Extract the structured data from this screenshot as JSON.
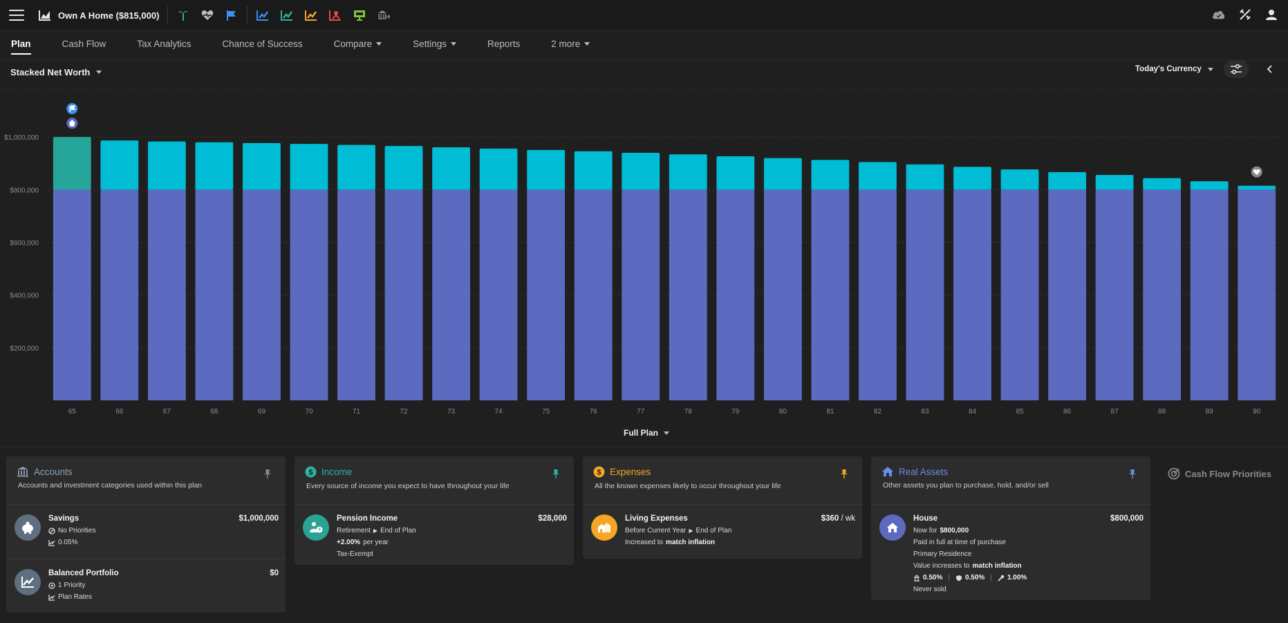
{
  "app": {
    "plan_title": "Own A Home ($815,000)"
  },
  "toolbar": {
    "left_icons": [
      {
        "name": "palm-icon",
        "color": "#2bb3a3"
      },
      {
        "name": "heart-monitor-icon",
        "color": "#bdbdbd"
      },
      {
        "name": "flag-icon",
        "color": "#3d8ff0"
      },
      {
        "name": "chart-scenario-1-icon",
        "color": "#3d8ff0"
      },
      {
        "name": "chart-scenario-2-icon",
        "color": "#2bb3a3"
      },
      {
        "name": "chart-scenario-3-icon",
        "color": "#f0a12b"
      },
      {
        "name": "chart-scenario-4-icon",
        "color": "#e84a4a"
      },
      {
        "name": "presentation-icon",
        "color": "#7cc440"
      },
      {
        "name": "bank-arrow-icon",
        "color": "#8a8a8a"
      }
    ],
    "right_icons": [
      "cloud-icon",
      "tools-icon",
      "user-icon"
    ]
  },
  "tabs": [
    {
      "label": "Plan",
      "active": true,
      "dropdown": false
    },
    {
      "label": "Cash Flow",
      "active": false,
      "dropdown": false
    },
    {
      "label": "Tax Analytics",
      "active": false,
      "dropdown": false
    },
    {
      "label": "Chance of Success",
      "active": false,
      "dropdown": false
    },
    {
      "label": "Compare",
      "active": false,
      "dropdown": true
    },
    {
      "label": "Settings",
      "active": false,
      "dropdown": true
    },
    {
      "label": "Reports",
      "active": false,
      "dropdown": false
    },
    {
      "label": "2 more",
      "active": false,
      "dropdown": true
    }
  ],
  "chart_controls": {
    "view": "Stacked Net Worth",
    "currency": "Today's Currency",
    "range": "Full Plan"
  },
  "chart_data": {
    "type": "bar",
    "stacked": true,
    "categories": [
      "65",
      "66",
      "67",
      "68",
      "69",
      "70",
      "71",
      "72",
      "73",
      "74",
      "75",
      "76",
      "77",
      "78",
      "79",
      "80",
      "81",
      "82",
      "83",
      "84",
      "85",
      "86",
      "87",
      "88",
      "89",
      "90"
    ],
    "series": [
      {
        "name": "House",
        "color": "#5c6bc0",
        "values": [
          800000,
          800000,
          800000,
          800000,
          800000,
          800000,
          800000,
          800000,
          800000,
          800000,
          800000,
          800000,
          800000,
          800000,
          800000,
          800000,
          800000,
          800000,
          800000,
          800000,
          800000,
          800000,
          800000,
          800000,
          800000,
          800000
        ]
      },
      {
        "name": "Savings",
        "color": "#00bcd4",
        "first_bar_color": "#26a69a",
        "values": [
          200000,
          187000,
          183000,
          180000,
          177000,
          174000,
          170000,
          166000,
          161000,
          156000,
          151000,
          146000,
          140000,
          134000,
          127000,
          120000,
          113000,
          105000,
          96000,
          87000,
          77000,
          67000,
          56000,
          44000,
          32000,
          15000
        ]
      }
    ],
    "yticks": [
      {
        "value": 200000,
        "label": "$200,000"
      },
      {
        "value": 400000,
        "label": "$400,000"
      },
      {
        "value": 600000,
        "label": "$600,000"
      },
      {
        "value": 800000,
        "label": "$800,000"
      },
      {
        "value": 1000000,
        "label": "$1,000,000"
      }
    ],
    "ylim": [
      0,
      1200000
    ],
    "grid": true,
    "markers": [
      {
        "category": "65",
        "icons": [
          "flag-icon",
          "home-icon"
        ]
      },
      {
        "category": "90",
        "icons": [
          "heart-monitor-icon"
        ]
      }
    ]
  },
  "cards": {
    "accounts": {
      "title": "Accounts",
      "desc": "Accounts and investment categories used within this plan",
      "color": "#8ea2b4",
      "items": [
        {
          "name": "Savings",
          "amount": "$1,000,000",
          "line1": "No Priorities",
          "line2": "0.05%",
          "icon_bg": "#5f6f80"
        },
        {
          "name": "Balanced Portfolio",
          "amount": "$0",
          "line1": "1 Priority",
          "line2": "Plan Rates",
          "icon_bg": "#5f6f80"
        }
      ]
    },
    "income": {
      "title": "Income",
      "desc": "Every source of income you expect to have throughout your life",
      "color": "#2bb3a3",
      "item": {
        "name": "Pension Income",
        "amount": "$28,000",
        "when_start": "Retirement",
        "when_end": "End of Plan",
        "growth_value": "+2.00%",
        "growth_unit": "per year",
        "tax": "Tax-Exempt"
      }
    },
    "expenses": {
      "title": "Expenses",
      "desc": "All the known expenses likely to occur throughout your life",
      "color": "#f5a623",
      "item": {
        "name": "Living Expenses",
        "amount": "$360",
        "amount_unit": "/ wk",
        "when_start": "Before Current Year",
        "when_end": "End of Plan",
        "growth_prefix": "Increased to",
        "growth_value": "match inflation"
      }
    },
    "real_assets": {
      "title": "Real Assets",
      "desc": "Other assets you plan to purchase, hold, and/or sell",
      "color": "#5c6bc0",
      "item": {
        "name": "House",
        "amount": "$800,000",
        "line1_prefix": "Now for",
        "line1_value": "$800,000",
        "line2": "Paid in full at time of purchase",
        "line3": "Primary Residence",
        "line4_prefix": "Value increases to",
        "line4_value": "match inflation",
        "rate1": "0.50%",
        "rate2": "0.50%",
        "rate3": "1.00%",
        "line6": "Never sold"
      }
    }
  },
  "cash_flow_priorities": "Cash Flow Priorities"
}
